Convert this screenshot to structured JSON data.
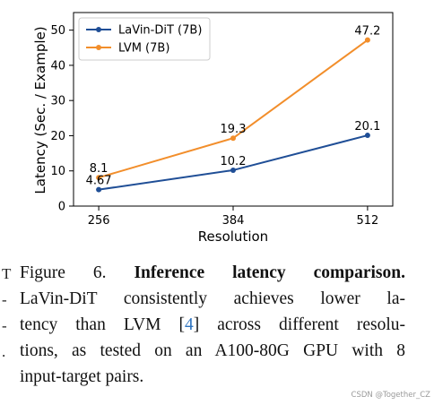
{
  "chart_data": {
    "type": "line",
    "x": [
      256,
      384,
      512
    ],
    "xlabel": "Resolution",
    "ylabel": "Latency (Sec. / Example)",
    "xticks": [
      "256",
      "384",
      "512"
    ],
    "yticks": [
      "0",
      "10",
      "20",
      "30",
      "40",
      "50"
    ],
    "ylim": [
      0,
      55
    ],
    "grid": false,
    "legend_position": "upper-left",
    "series": [
      {
        "name": "LaVin-DiT (7B)",
        "values": [
          4.67,
          10.2,
          20.1
        ],
        "labels": [
          "4.67",
          "10.2",
          "20.1"
        ],
        "color": "#1f4e96"
      },
      {
        "name": "LVM (7B)",
        "values": [
          8.1,
          19.3,
          47.2
        ],
        "labels": [
          "8.1",
          "19.3",
          "47.2"
        ],
        "color": "#f28e2b"
      }
    ]
  },
  "caption": {
    "figure_label": "Figure 6.",
    "bold_title": "Inference latency comparison.",
    "line2": "LaVin-DiT consistently achieves lower la-",
    "line3_before_ref": "tency than LVM [",
    "ref": "4",
    "line3_after_ref": "] across different resolu-",
    "line4": "tions, as tested on an A100-80G GPU with 8",
    "line5": "input-target pairs."
  },
  "margin_marks": [
    "T",
    "-",
    "-",
    "."
  ],
  "watermark": "CSDN @Together_CZ"
}
